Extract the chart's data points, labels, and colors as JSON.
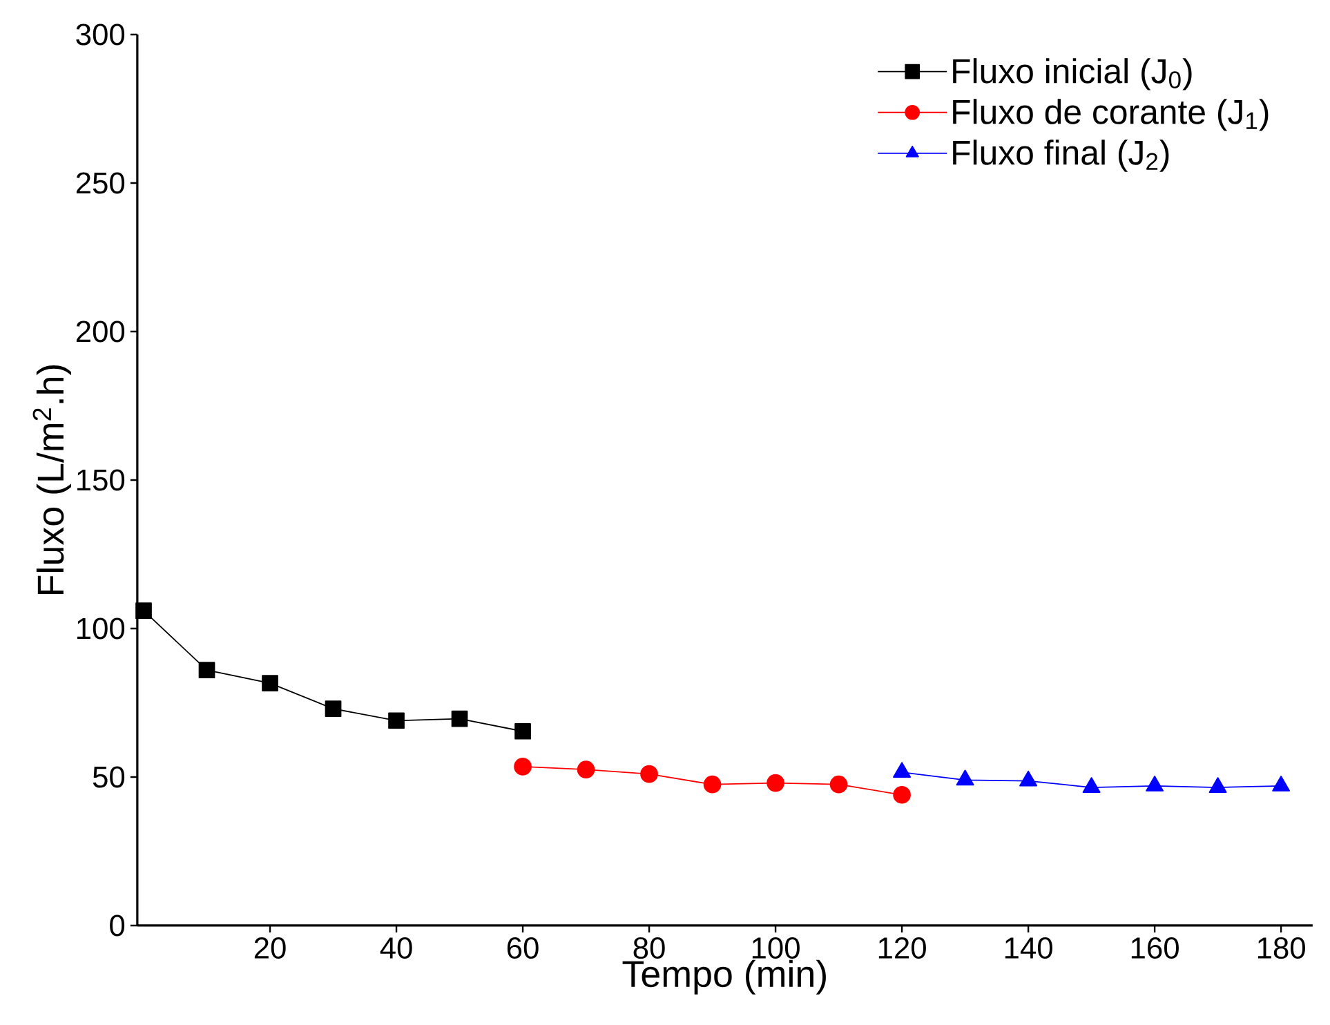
{
  "chart_data": {
    "type": "line",
    "xlabel": "Tempo (min)",
    "ylabel": "Fluxo (L/m$^{2}$.h)",
    "xlim": [
      -1,
      185
    ],
    "ylim": [
      0,
      300
    ],
    "xticks": [
      20,
      40,
      60,
      80,
      100,
      120,
      140,
      160,
      180
    ],
    "yticks": [
      0,
      50,
      100,
      150,
      200,
      250,
      300
    ],
    "legend": "top right",
    "series": [
      {
        "name": "Fluxo inicial (J$_{0}$)",
        "color": "#000000",
        "marker": "square",
        "x": [
          0,
          10,
          20,
          30,
          40,
          50,
          60
        ],
        "values": [
          106,
          86,
          81.6,
          73,
          69,
          69.6,
          65.4
        ]
      },
      {
        "name": "Fluxo de corante (J$_{1}$)",
        "color": "#ff0000",
        "marker": "circle",
        "x": [
          60,
          70,
          80,
          90,
          100,
          110,
          120
        ],
        "values": [
          53.5,
          52.5,
          51,
          47.5,
          48,
          47.5,
          44
        ]
      },
      {
        "name": "Fluxo final (J$_{2}$)",
        "color": "#0000ff",
        "marker": "triangle",
        "x": [
          120,
          130,
          140,
          150,
          160,
          170,
          180
        ],
        "values": [
          51.6,
          49,
          48.7,
          46.5,
          47,
          46.5,
          47
        ]
      }
    ]
  }
}
